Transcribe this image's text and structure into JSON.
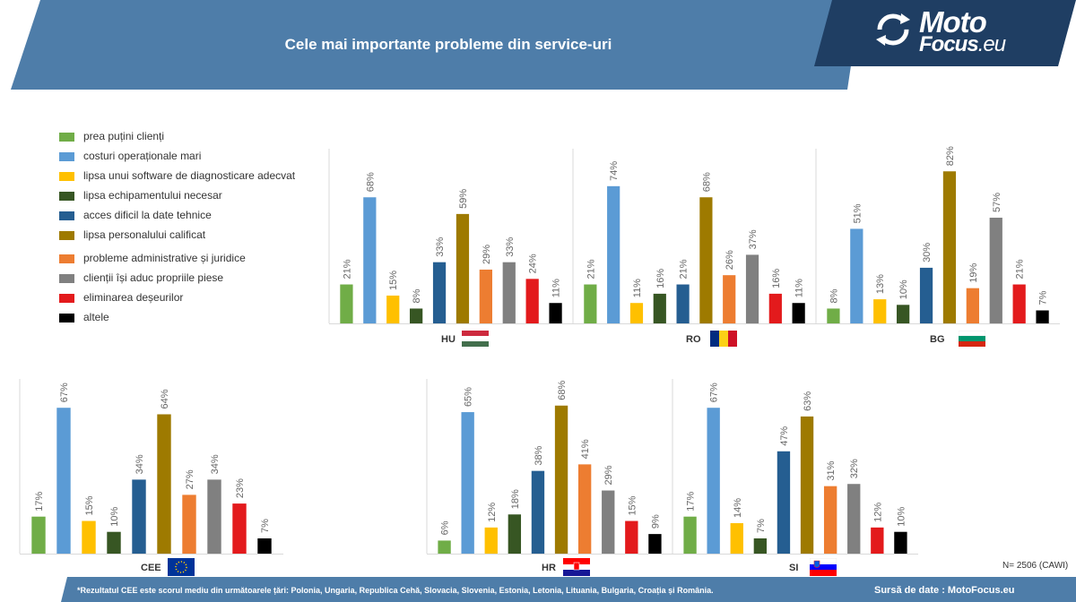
{
  "header": {
    "title": "Cele mai importante probleme din service-uri",
    "logo_line1": "Moto",
    "logo_line2": "Focus",
    "logo_suffix": ".eu"
  },
  "legend": [
    {
      "label": "prea puțini clienți",
      "color": "#70ad47"
    },
    {
      "label": "costuri operaționale mari",
      "color": "#5b9bd5"
    },
    {
      "label": "lipsa unui software de diagnosticare adecvat",
      "color": "#ffc000"
    },
    {
      "label": "lipsa echipamentului necesar",
      "color": "#375623"
    },
    {
      "label": "acces dificil la date tehnice",
      "color": "#255e91"
    },
    {
      "label": "lipsa personalului calificat",
      "color": "#9e7a00"
    },
    {
      "label": "probleme administrative și juridice",
      "color": "#ed7d31"
    },
    {
      "label": "clienții își aduc propriile piese",
      "color": "#808080"
    },
    {
      "label": "eliminarea deșeurilor",
      "color": "#e31a1c"
    },
    {
      "label": "altele",
      "color": "#000000"
    }
  ],
  "chart_data": [
    {
      "type": "bar",
      "country": "HU",
      "values": [
        21,
        68,
        15,
        8,
        33,
        59,
        29,
        33,
        24,
        11
      ],
      "unit": "%"
    },
    {
      "type": "bar",
      "country": "RO",
      "values": [
        21,
        74,
        11,
        16,
        21,
        68,
        26,
        37,
        16,
        11
      ],
      "unit": "%"
    },
    {
      "type": "bar",
      "country": "BG",
      "values": [
        8,
        51,
        13,
        10,
        30,
        82,
        19,
        57,
        21,
        7
      ],
      "unit": "%"
    },
    {
      "type": "bar",
      "country": "CEE",
      "values": [
        17,
        67,
        15,
        10,
        34,
        64,
        27,
        34,
        23,
        7
      ],
      "unit": "%"
    },
    {
      "type": "bar",
      "country": "HR",
      "values": [
        6,
        65,
        12,
        18,
        38,
        68,
        41,
        29,
        15,
        9
      ],
      "unit": "%"
    },
    {
      "type": "bar",
      "country": "SI",
      "values": [
        17,
        67,
        14,
        7,
        47,
        63,
        31,
        32,
        12,
        10
      ],
      "unit": "%"
    }
  ],
  "footer": {
    "footnote": "*Rezultatul CEE este scorul mediu din următoarele țări: Polonia, Ungaria, Republica Cehă, Slovacia, Slovenia, Estonia, Letonia, Lituania, Bulgaria, Croația și România.",
    "source": "Sursă de date : MotoFocus.eu",
    "sample": "N= 2506 (CAWI)"
  },
  "colors": {
    "header_band": "#4e7da9",
    "logo_band": "#1f3e63",
    "footer_band": "#4e7da9",
    "axis": "#d9d9d9"
  }
}
